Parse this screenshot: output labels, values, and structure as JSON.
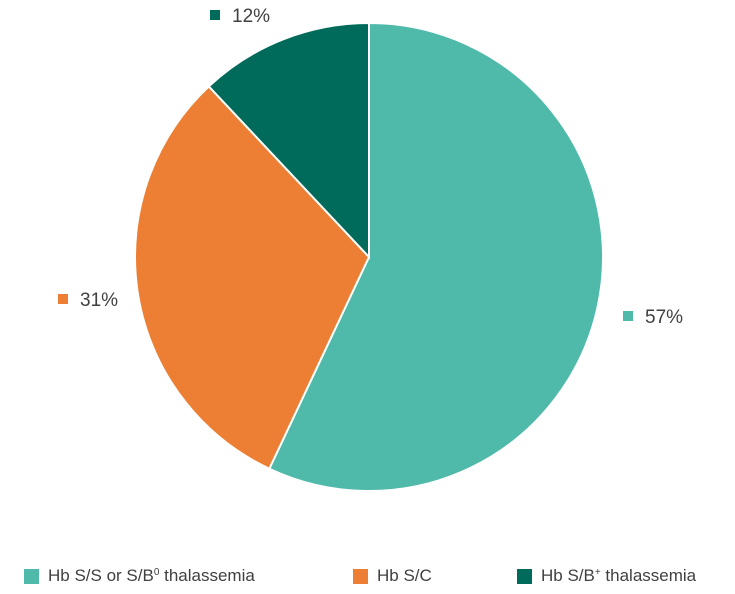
{
  "chart_data": {
    "type": "pie",
    "title": "",
    "slices": [
      {
        "name": "Hb S/S or S/B⁰ thalassemia",
        "label_main": "Hb S/S or S/B",
        "label_sup": "0",
        "label_tail": " thalassemia",
        "value": 57,
        "data_label": "57%",
        "color": "#4fb9aa"
      },
      {
        "name": "Hb S/C",
        "label_main": "Hb S/C",
        "label_sup": "",
        "label_tail": "",
        "value": 31,
        "data_label": "31%",
        "color": "#ec7f33"
      },
      {
        "name": "Hb S/B⁺ thalassemia",
        "label_main": "Hb S/B",
        "label_sup": "+",
        "label_tail": " thalassemia",
        "value": 12,
        "data_label": "12%",
        "color": "#006b5b"
      }
    ],
    "start_angle_deg": 0,
    "direction": "clockwise",
    "legend_position": "bottom",
    "data_label_color": "#404040",
    "slice_border_color": "#ffffff"
  }
}
